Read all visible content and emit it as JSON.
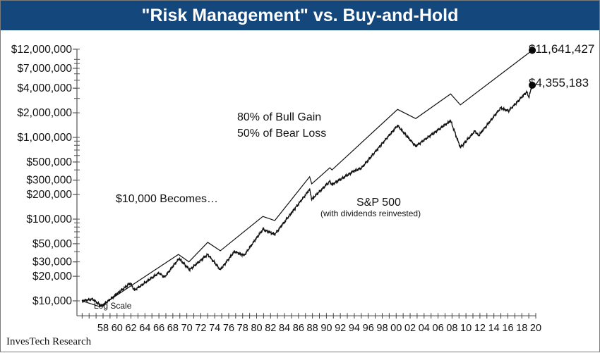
{
  "title": "\"Risk Management\" vs. Buy-and-Hold",
  "footer": "InvesTech Research",
  "chart_data": {
    "type": "line",
    "title": "\"Risk Management\" vs. Buy-and-Hold",
    "y_scale": "log",
    "y_scale_label": "Log Scale",
    "ylim": [
      8000,
      12000000
    ],
    "xlim": [
      1954.3,
      2020
    ],
    "y_ticks": [
      {
        "value": 12000000,
        "label": "$12,000,000"
      },
      {
        "value": 7000000,
        "label": "$7,000,000"
      },
      {
        "value": 4000000,
        "label": "$4,000,000"
      },
      {
        "value": 2000000,
        "label": "$2,000,000"
      },
      {
        "value": 1000000,
        "label": "$1,000,000"
      },
      {
        "value": 500000,
        "label": "$500,000"
      },
      {
        "value": 300000,
        "label": "$300,000"
      },
      {
        "value": 200000,
        "label": "$200,000"
      },
      {
        "value": 100000,
        "label": "$100,000"
      },
      {
        "value": 50000,
        "label": "$50,000"
      },
      {
        "value": 30000,
        "label": "$30,000"
      },
      {
        "value": 20000,
        "label": "$20,000"
      },
      {
        "value": 10000,
        "label": "$10,000"
      }
    ],
    "x_ticks": [
      {
        "value": 1958,
        "label": "58"
      },
      {
        "value": 1960,
        "label": "60"
      },
      {
        "value": 1962,
        "label": "62"
      },
      {
        "value": 1964,
        "label": "64"
      },
      {
        "value": 1966,
        "label": "66"
      },
      {
        "value": 1968,
        "label": "68"
      },
      {
        "value": 1970,
        "label": "70"
      },
      {
        "value": 1972,
        "label": "72"
      },
      {
        "value": 1974,
        "label": "74"
      },
      {
        "value": 1976,
        "label": "76"
      },
      {
        "value": 1978,
        "label": "78"
      },
      {
        "value": 1980,
        "label": "80"
      },
      {
        "value": 1982,
        "label": "82"
      },
      {
        "value": 1984,
        "label": "84"
      },
      {
        "value": 1986,
        "label": "86"
      },
      {
        "value": 1988,
        "label": "88"
      },
      {
        "value": 1990,
        "label": "90"
      },
      {
        "value": 1992,
        "label": "92"
      },
      {
        "value": 1994,
        "label": "94"
      },
      {
        "value": 1996,
        "label": "96"
      },
      {
        "value": 1998,
        "label": "98"
      },
      {
        "value": 2000,
        "label": "00"
      },
      {
        "value": 2002,
        "label": "02"
      },
      {
        "value": 2004,
        "label": "04"
      },
      {
        "value": 2006,
        "label": "06"
      },
      {
        "value": 2008,
        "label": "08"
      },
      {
        "value": 2010,
        "label": "10"
      },
      {
        "value": 2012,
        "label": "12"
      },
      {
        "value": 2014,
        "label": "14"
      },
      {
        "value": 2016,
        "label": "16"
      },
      {
        "value": 2018,
        "label": "18"
      },
      {
        "value": 2020,
        "label": "20"
      }
    ],
    "series": [
      {
        "name": "80% of Bull Gain / 50% of Bear Loss",
        "end_label": "$11,641,427",
        "x": [
          1955,
          1957.5,
          1968.8,
          1970.3,
          1973,
          1974.8,
          1980.9,
          1982.6,
          1987.6,
          1987.9,
          1990.5,
          1990.8,
          2000.2,
          2002.8,
          2007.8,
          2009.2,
          2019.5
        ],
        "y": [
          10000,
          8500,
          37000,
          30000,
          52000,
          41000,
          108000,
          96000,
          330000,
          270000,
          425000,
          400000,
          2200000,
          1700000,
          3400000,
          2500000,
          11641427
        ]
      },
      {
        "name": "S&P 500 (with dividends reinvested)",
        "end_label": "$4,355,183",
        "x": [
          1955,
          1956.5,
          1957.8,
          1961.9,
          1962.5,
          1966,
          1966.8,
          1968.9,
          1970.4,
          1973,
          1974.8,
          1976.8,
          1978.2,
          1980.9,
          1982.6,
          1987.6,
          1987.9,
          1990.5,
          1990.8,
          1994,
          1995,
          2000.2,
          2002.8,
          2007.8,
          2009.2,
          2011.3,
          2011.8,
          2015,
          2016.1,
          2018.7,
          2019,
          2019.5
        ],
        "y": [
          10000,
          10500,
          8600,
          16500,
          13500,
          22000,
          19500,
          33000,
          24000,
          37000,
          24000,
          40000,
          36000,
          75000,
          65000,
          230000,
          175000,
          290000,
          265000,
          390000,
          420000,
          1400000,
          780000,
          1600000,
          750000,
          1200000,
          1050000,
          2300000,
          2100000,
          3600000,
          3100000,
          4355183
        ]
      }
    ],
    "annotations": {
      "risk_line1": "80% of Bull Gain",
      "risk_line2": "50% of Bear Loss",
      "becomes": "$10,000 Becomes…",
      "sp_line1": "S&P 500",
      "sp_line2": "(with dividends reinvested)"
    }
  }
}
